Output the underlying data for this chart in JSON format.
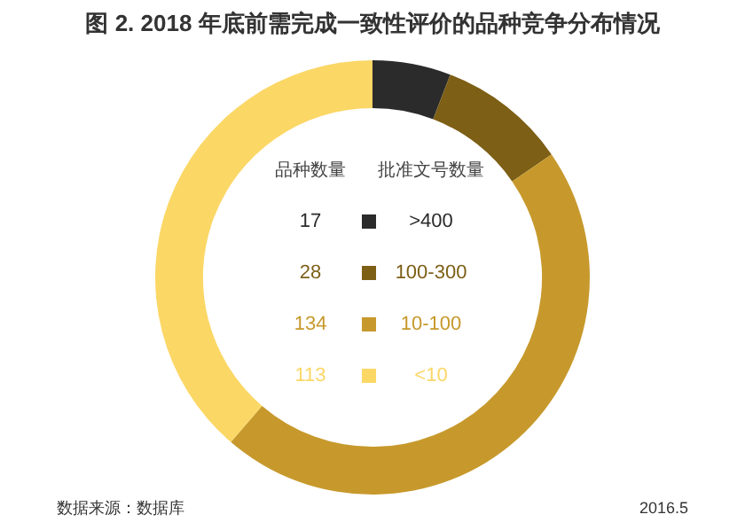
{
  "chart_data": {
    "type": "donut",
    "title": "图 2. 2018 年底前需完成一致性评价的品种竞争分布情况",
    "categories": [
      ">400",
      "100-300",
      "10-100",
      "<10"
    ],
    "values": [
      17,
      28,
      134,
      113
    ],
    "colors": [
      "#2b2b2b",
      "#7d5f16",
      "#c7992c",
      "#fbd766"
    ],
    "legend": "center",
    "legend_title": "批准文号数量",
    "data_labels": true,
    "annotations": [
      "品种数量",
      "数据来源：数据库",
      "2016.5"
    ]
  }
}
